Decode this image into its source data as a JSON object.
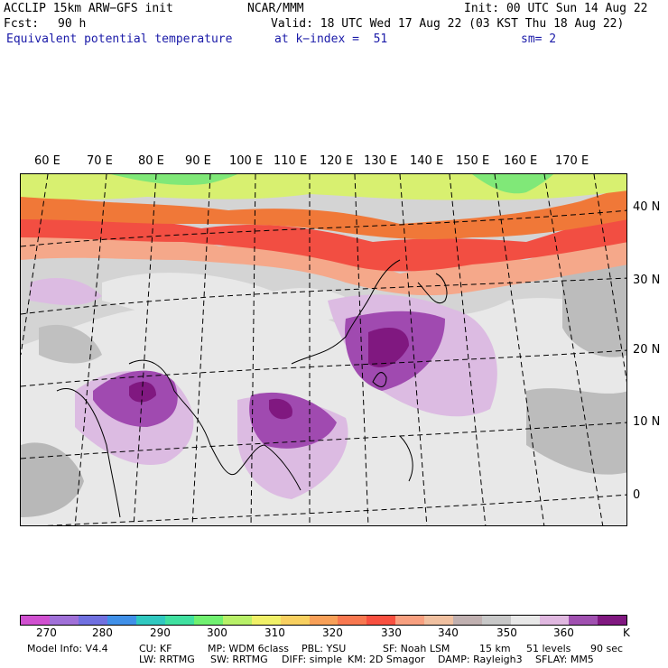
{
  "header": {
    "model": "ACCLIP 15km ARW−GFS init",
    "center": "NCAR/MMM",
    "init": "Init: 00 UTC Sun 14 Aug 22",
    "fcst_label": "Fcst:",
    "fcst_value": "90 h",
    "valid": "Valid: 18 UTC Wed 17 Aug 22 (03 KST Thu 18 Aug 22)",
    "field": "Equivalent potential temperature",
    "level": "at k−index =  51",
    "smoothing": "sm= 2"
  },
  "map": {
    "lon_labels": [
      "60 E",
      "70 E",
      "80 E",
      "90 E",
      "100 E",
      "110 E",
      "120 E",
      "130 E",
      "140 E",
      "150 E",
      "160 E",
      "170 E"
    ],
    "lat_labels": [
      "40 N",
      "30 N",
      "20 N",
      "10 N",
      "0"
    ],
    "colors": {
      "warm_orange": "#f06030",
      "red": "#f44a40",
      "salmon": "#f8a080",
      "peach": "#f8c8a0",
      "yellow_green": "#d8f070",
      "green": "#7ce870",
      "grey_dark": "#b0b0b0",
      "grey_mid": "#c8c8c8",
      "grey_light": "#e8e8e8",
      "lilac": "#d8b8e0",
      "purple": "#a050b0",
      "dark_purple": "#801880"
    }
  },
  "colorbar": {
    "unit": "K",
    "tick_labels": [
      "270",
      "280",
      "290",
      "300",
      "310",
      "320",
      "330",
      "340",
      "350",
      "360"
    ],
    "colors": [
      "#d050d0",
      "#a070d8",
      "#7070e0",
      "#4090e8",
      "#30c8c0",
      "#40e0a0",
      "#70f070",
      "#b8f068",
      "#f0f068",
      "#f8d060",
      "#f8a058",
      "#f87850",
      "#f85040",
      "#f8a080",
      "#f0c0a0",
      "#c0b0b0",
      "#c8c8c8",
      "#e8e8e8",
      "#e0b8e0",
      "#a050b0",
      "#801880"
    ]
  },
  "footer": {
    "line1": [
      "Model Info: V4.4",
      "CU: KF",
      "MP: WDM 6class",
      "PBL: YSU",
      "SF: Noah LSM",
      "15 km",
      "51 levels",
      "90 sec"
    ],
    "line2": [
      "LW: RRTMG",
      "SW: RRTMG",
      "DIFF: simple",
      "KM: 2D Smagor",
      "DAMP: Rayleigh3",
      "SFLAY: MM5"
    ]
  }
}
